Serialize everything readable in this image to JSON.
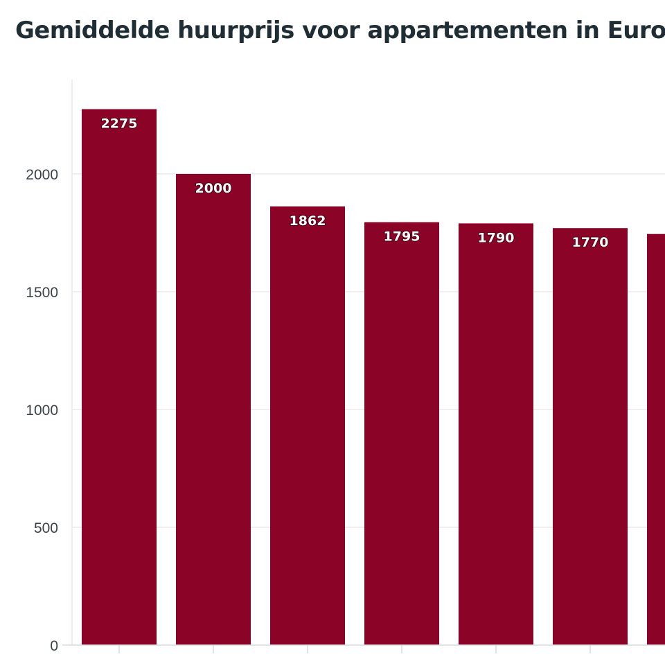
{
  "chart_data": {
    "type": "bar",
    "title": "Gemiddelde huurprijs voor appartementen in Euro",
    "xlabel": "",
    "ylabel": "",
    "categories": [
      "",
      "",
      "",
      "",
      "",
      "",
      ""
    ],
    "values": [
      2275,
      2000,
      1862,
      1795,
      1790,
      1770,
      1745
    ],
    "value_labels": [
      "2275",
      "2000",
      "1862",
      "1795",
      "1790",
      "1770",
      ""
    ],
    "ylim": [
      0,
      2350
    ],
    "yticks": [
      0,
      500,
      1000,
      1500,
      2000
    ],
    "ytick_labels": [
      "0",
      "500",
      "1000",
      "1500",
      "2000"
    ],
    "grid": true,
    "legend": "none",
    "bar_color": "#8b0427",
    "grid_color": "#e8eaec"
  }
}
